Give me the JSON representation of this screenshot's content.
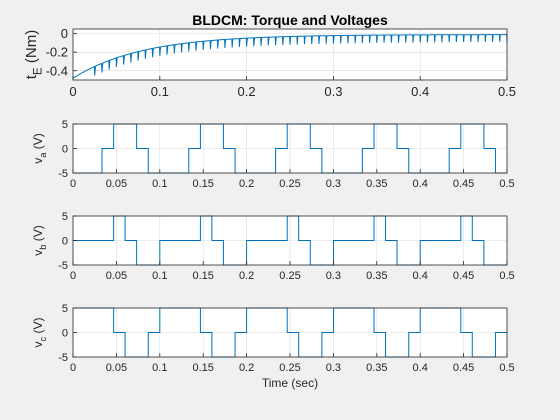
{
  "figure": {
    "background": "#f0f0f0",
    "axes_background": "#ffffff",
    "line_color": "#0072bd",
    "grid_color": "#dcdcdc"
  },
  "chart_data": [
    {
      "type": "line",
      "title": "BLDCM: Torque and Voltages",
      "ylabel": "t_E (Nm)",
      "xlabel": "",
      "xlim": [
        0,
        0.5
      ],
      "ylim": [
        -0.5,
        0.05
      ],
      "xticks": [
        0,
        0.1,
        0.2,
        0.3,
        0.4,
        0.5
      ],
      "xtick_labels": [
        "0",
        "0.1",
        "0.2",
        "0.3",
        "0.4",
        "0.5"
      ],
      "yticks": [
        0,
        -0.2,
        -0.4
      ],
      "ytick_labels": [
        "0",
        "-0.2",
        "-0.4"
      ],
      "grid": true,
      "series": [
        {
          "shape": "exponential rise with periodic commutation spikes",
          "start": -0.48,
          "final": -0.01,
          "time_constant": 0.08,
          "spike_period": 0.00833,
          "spike_depth": 0.1
        }
      ]
    },
    {
      "type": "line",
      "ylabel": "v_a (V)",
      "xlabel": "",
      "xlim": [
        0,
        0.5
      ],
      "ylim": [
        -5,
        5
      ],
      "xticks": [
        0,
        0.05,
        0.1,
        0.15,
        0.2,
        0.25,
        0.3,
        0.35,
        0.4,
        0.45,
        0.5
      ],
      "xtick_labels": [
        "0",
        "0.05",
        "0.1",
        "0.15",
        "0.2",
        "0.25",
        "0.3",
        "0.35",
        "0.4",
        "0.45",
        "0.5"
      ],
      "yticks": [
        5,
        0,
        -5
      ],
      "ytick_labels": [
        "5",
        "0",
        "-5"
      ],
      "grid": true,
      "series": [
        {
          "shape": "six-step trapezoidal voltage",
          "amplitude": 5,
          "levels": [
            -5,
            0,
            5,
            5,
            0,
            -5
          ],
          "step_boundaries": [
            0,
            0.0333,
            0.0467,
            0.06,
            0.0733,
            0.0867,
            0.1
          ]
        }
      ]
    },
    {
      "type": "line",
      "ylabel": "v_b (V)",
      "xlabel": "",
      "xlim": [
        0,
        0.5
      ],
      "ylim": [
        -5,
        5
      ],
      "xticks": [
        0,
        0.05,
        0.1,
        0.15,
        0.2,
        0.25,
        0.3,
        0.35,
        0.4,
        0.45,
        0.5
      ],
      "xtick_labels": [
        "0",
        "0.05",
        "0.1",
        "0.15",
        "0.2",
        "0.25",
        "0.3",
        "0.35",
        "0.4",
        "0.45",
        "0.5"
      ],
      "yticks": [
        5,
        0,
        -5
      ],
      "ytick_labels": [
        "5",
        "0",
        "-5"
      ],
      "grid": true,
      "series": [
        {
          "shape": "six-step trapezoidal voltage",
          "amplitude": 5,
          "levels": [
            0,
            0,
            5,
            0,
            -5,
            -5
          ],
          "step_boundaries": [
            0,
            0.0333,
            0.0467,
            0.06,
            0.0733,
            0.0867,
            0.1
          ]
        }
      ]
    },
    {
      "type": "line",
      "ylabel": "v_c (V)",
      "xlabel": "Time (sec)",
      "xlim": [
        0,
        0.5
      ],
      "ylim": [
        -5,
        5
      ],
      "xticks": [
        0,
        0.05,
        0.1,
        0.15,
        0.2,
        0.25,
        0.3,
        0.35,
        0.4,
        0.45,
        0.5
      ],
      "xtick_labels": [
        "0",
        "0.05",
        "0.1",
        "0.15",
        "0.2",
        "0.25",
        "0.3",
        "0.35",
        "0.4",
        "0.45",
        "0.5"
      ],
      "yticks": [
        5,
        0,
        -5
      ],
      "ytick_labels": [
        "5",
        "0",
        "-5"
      ],
      "grid": true,
      "series": [
        {
          "shape": "six-step trapezoidal voltage",
          "amplitude": 5,
          "levels": [
            5,
            5,
            0,
            -5,
            -5,
            0
          ],
          "step_boundaries": [
            0,
            0.0333,
            0.0467,
            0.06,
            0.0733,
            0.0867,
            0.1
          ]
        }
      ]
    }
  ]
}
